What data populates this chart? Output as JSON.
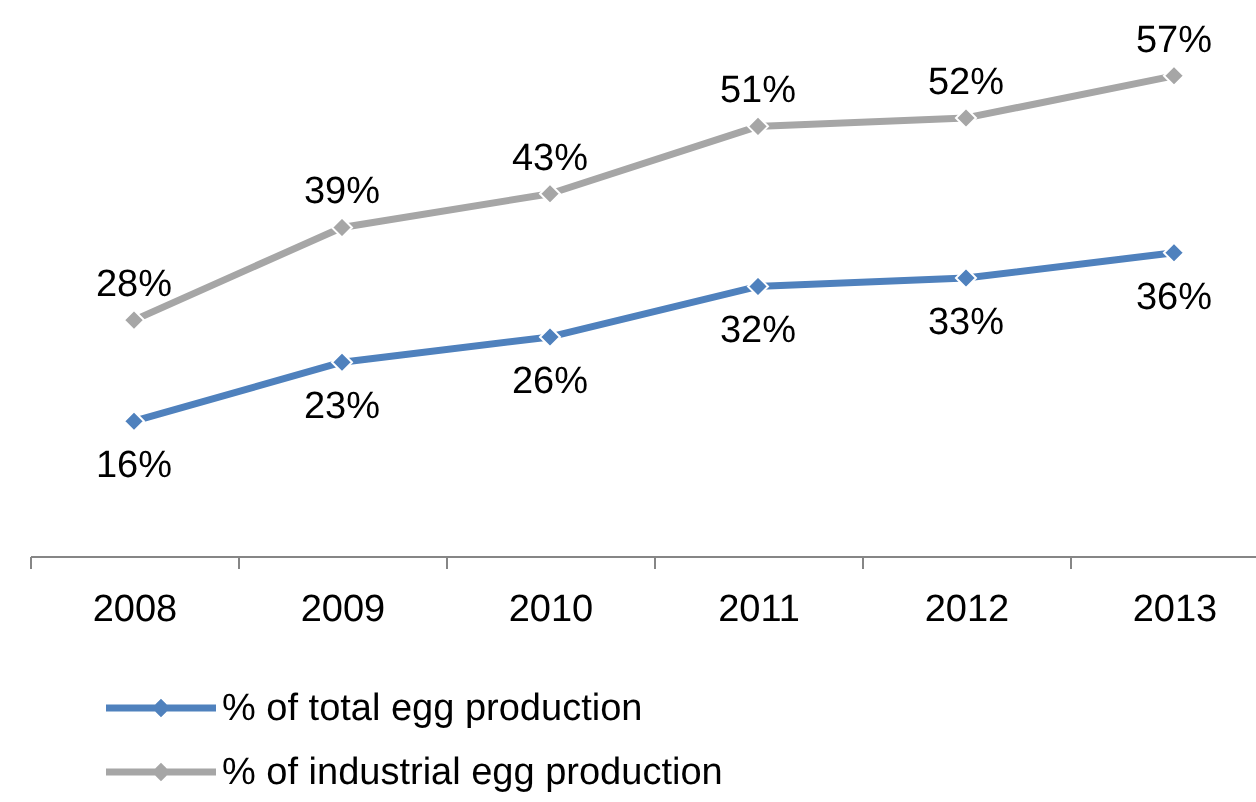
{
  "chart_data": {
    "type": "line",
    "categories": [
      "2008",
      "2009",
      "2010",
      "2011",
      "2012",
      "2013"
    ],
    "series": [
      {
        "name": "% of total egg production",
        "color": "#4f81bd",
        "values": [
          16,
          23,
          26,
          32,
          33,
          36
        ],
        "value_labels": [
          "16%",
          "23%",
          "26%",
          "32%",
          "33%",
          "36%"
        ]
      },
      {
        "name": "% of industrial egg production",
        "color": "#a6a6a6",
        "values": [
          28,
          39,
          43,
          51,
          52,
          57
        ],
        "value_labels": [
          "28%",
          "39%",
          "43%",
          "51%",
          "52%",
          "57%"
        ]
      }
    ],
    "ylim": [
      0,
      66
    ],
    "tick_labels": "x",
    "marker": "diamond",
    "line_style": "solid",
    "legend": "bottom left"
  }
}
